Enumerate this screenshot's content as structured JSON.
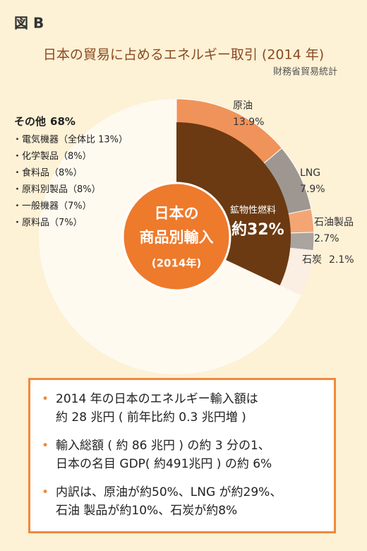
{
  "figure_label": "図 B",
  "chart_data": {
    "type": "pie",
    "title": "日本の貿易に占めるエネルギー取引 (2014 年)",
    "source": "財務省貿易統計",
    "center_label": [
      "日本の",
      "商品別輸入",
      "(2014年)"
    ],
    "fuel": {
      "name": "鉱物性燃料",
      "value": 32,
      "value_label": "約32%",
      "color": "#6b3a12"
    },
    "slices": [
      {
        "name": "原油",
        "value": 13.9,
        "value_label": "13.9%",
        "color": "#f0935a"
      },
      {
        "name": "LNG",
        "value": 7.9,
        "value_label": "7.9%",
        "color": "#9e9791"
      },
      {
        "name": "石油製品",
        "value": 2.7,
        "value_label": "2.7%",
        "color": "#f3a674"
      },
      {
        "name": "石炭",
        "value": 2.1,
        "value_label": "2.1%",
        "color": "#aaa49f"
      }
    ],
    "other": {
      "name": "その他",
      "value": 68,
      "value_label": "68%",
      "color": "#fffaf0",
      "items": [
        "・電気機器（全体比 13%）",
        "・化学製品（8%）",
        "・食料品（8%）",
        "・原料別製品（8%）",
        "・一般機器（7%）",
        "・原料品（7%）"
      ]
    }
  },
  "notes": [
    [
      "2014 年の日本のエネルギー輸入額は",
      "約 28 兆円 ( 前年比約 0.3 兆円増 )"
    ],
    [
      "輸入総額 ( 約 86 兆円 ) の約 3 分の1、",
      "日本の名目 GDP( 約491兆円 ) の約 6%"
    ],
    [
      "内訳は、原油が約50%、LNG が約29%、",
      "石油 製品が約10%、石炭が約8%"
    ]
  ]
}
